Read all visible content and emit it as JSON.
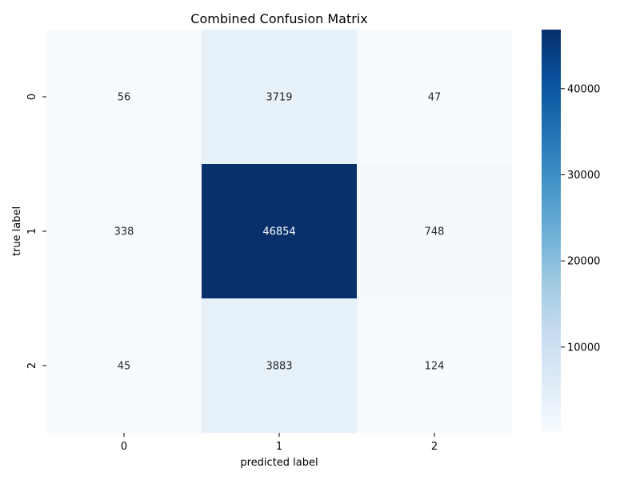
{
  "chart_data": {
    "type": "heatmap",
    "title": "Combined Confusion Matrix",
    "xlabel": "predicted label",
    "ylabel": "true label",
    "x_categories": [
      "0",
      "1",
      "2"
    ],
    "y_categories": [
      "0",
      "1",
      "2"
    ],
    "values": [
      [
        56,
        3719,
        47
      ],
      [
        338,
        46854,
        748
      ],
      [
        45,
        3883,
        124
      ]
    ],
    "colorbar": {
      "colormap": "Blues",
      "range": [
        45,
        46854
      ],
      "ticks": [
        10000,
        20000,
        30000,
        40000
      ],
      "tick_labels": [
        "10000",
        "20000",
        "30000",
        "40000"
      ]
    },
    "grid": false,
    "legend": "none"
  }
}
